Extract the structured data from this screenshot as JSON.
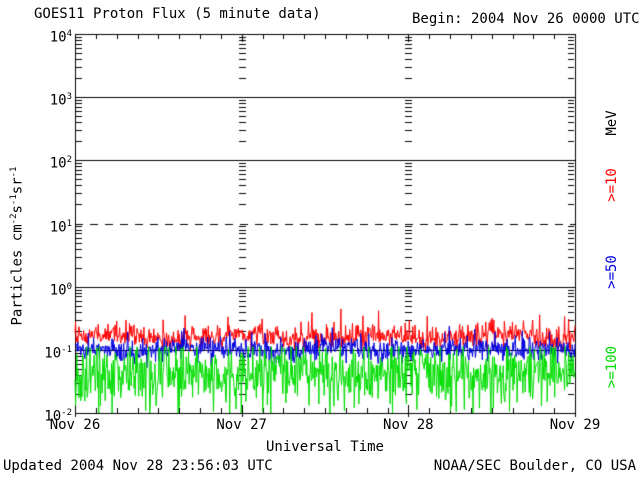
{
  "header": {
    "title": "GOES11 Proton Flux (5 minute data)",
    "begin": "Begin: 2004 Nov 26 0000 UTC"
  },
  "footer": {
    "updated": "Updated 2004 Nov 28 23:56:03 UTC",
    "credit": "NOAA/SEC Boulder, CO USA"
  },
  "axes": {
    "xlabel": "Universal Time",
    "ylabel_segments": [
      {
        "text": "Particles cm"
      },
      {
        "sup": "-2"
      },
      {
        "text": "s"
      },
      {
        "sup": "-1"
      },
      {
        "text": "sr"
      },
      {
        "sup": "-1"
      }
    ],
    "y_tick_base": "10"
  },
  "legend": {
    "unit": {
      "label": "MeV",
      "color": "#000000"
    },
    "items": [
      {
        "label": ">=10",
        "color": "#ff0000"
      },
      {
        "label": ">=50",
        "color": "#0000dd"
      },
      {
        "label": ">=100",
        "color": "#00dd00"
      }
    ]
  },
  "chart_data": {
    "type": "line",
    "title": "GOES11 Proton Flux (5 minute data)",
    "subtitle": "Begin: 2004 Nov 26 0000 UTC",
    "xlabel": "Universal Time",
    "ylabel": "Particles cm^-2 s^-1 sr^-1",
    "y_scale": "log",
    "y_log_range": [
      -2,
      4
    ],
    "y_tick_exponents": [
      4,
      3,
      2,
      1,
      0,
      -1,
      -2
    ],
    "solid_hlines_log": [
      3,
      2,
      0,
      -1
    ],
    "dashed_hlines_log": [
      1
    ],
    "x_range_days": 3,
    "x_tick_labels": [
      "Nov 26",
      "Nov 27",
      "Nov 28",
      "Nov 29"
    ],
    "x_minor_tick_hours": 3,
    "samples_per_day": 288,
    "legend_position": "right",
    "legend_unit": "MeV",
    "prng_seed": 20041126,
    "series": [
      {
        "name": ">=10 MeV",
        "color": "#ff0000",
        "log10_median": -0.8,
        "log10_sigma": 0.09,
        "wander_amp": 0.04,
        "spike_prob": 0.07,
        "spike_log10": 0.3,
        "clip_log10": [
          -1.02,
          -0.3
        ],
        "typical_flux": 0.16,
        "flux_range": [
          0.1,
          0.5
        ]
      },
      {
        "name": ">=50 MeV",
        "color": "#0000dd",
        "log10_median": -1.0,
        "log10_sigma": 0.09,
        "wander_amp": 0.03,
        "spike_prob": 0.05,
        "spike_log10": 0.3,
        "clip_log10": [
          -1.3,
          -0.58
        ],
        "typical_flux": 0.1,
        "flux_range": [
          0.05,
          0.25
        ]
      },
      {
        "name": ">=100 MeV",
        "color": "#00dd00",
        "log10_median": -1.35,
        "log10_sigma": 0.24,
        "wander_amp": 0.06,
        "spike_prob": 0.12,
        "spike_log10": -0.55,
        "clip_log10": [
          -2.0,
          -0.95
        ],
        "typical_flux": 0.045,
        "flux_range": [
          0.01,
          0.11
        ]
      }
    ],
    "annotations": {
      "updated": "Updated 2004 Nov 28 23:56:03 UTC",
      "credit": "NOAA/SEC Boulder, CO USA"
    }
  }
}
